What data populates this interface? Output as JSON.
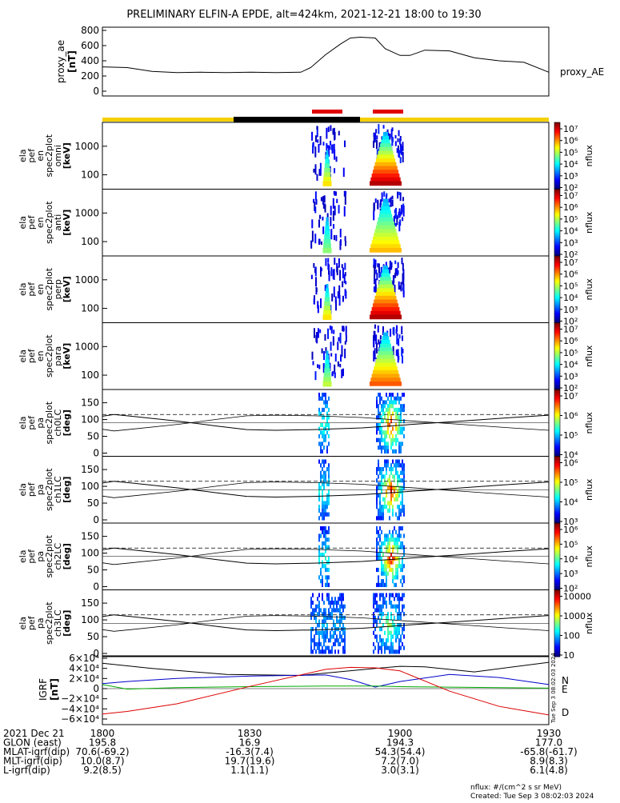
{
  "title": "PRELIMINARY ELFIN-A EPDE, alt=424km, 2021-12-21 18:00 to 19:30",
  "ae_panel": {
    "ylabel": "proxy_ae",
    "unit": "[nT]",
    "legend": "proxy_AE",
    "ticks": [
      "800",
      "600",
      "400",
      "200",
      "0"
    ]
  },
  "spec_panels": [
    {
      "l1": "ela",
      "l2": "pef",
      "l3": "en",
      "l4": "spec2plot",
      "l5": "omni",
      "unit": "[keV]",
      "ticks": [
        "1000",
        "100"
      ],
      "cb_label": "nflux"
    },
    {
      "l1": "ela",
      "l2": "pef",
      "l3": "en",
      "l4": "spec2plot",
      "l5": "anti",
      "unit": "[keV]",
      "ticks": [
        "1000",
        "100"
      ],
      "cb_label": "nflux"
    },
    {
      "l1": "ela",
      "l2": "pef",
      "l3": "en",
      "l4": "spec2plot",
      "l5": "perp",
      "unit": "[keV]",
      "ticks": [
        "1000",
        "100"
      ],
      "cb_label": "nflux"
    },
    {
      "l1": "ela",
      "l2": "pef",
      "l3": "en",
      "l4": "spec2plot",
      "l5": "para",
      "unit": "[keV]",
      "ticks": [
        "1000",
        "100"
      ],
      "cb_label": "nflux"
    }
  ],
  "pa_panels": [
    {
      "l1": "ela",
      "l2": "pef",
      "l3": "pa",
      "l4": "spec2plot",
      "l5": "ch0LC",
      "unit": "[deg]",
      "ticks": [
        "150",
        "100",
        "50",
        "0"
      ],
      "cb_label": "nflux"
    },
    {
      "l1": "ela",
      "l2": "pef",
      "l3": "pa",
      "l4": "spec2plot",
      "l5": "ch1LC",
      "unit": "[deg]",
      "ticks": [
        "150",
        "100",
        "50",
        "0"
      ],
      "cb_label": "nflux"
    },
    {
      "l1": "ela",
      "l2": "pef",
      "l3": "pa",
      "l4": "spec2plot",
      "l5": "ch2LC",
      "unit": "[deg]",
      "ticks": [
        "150",
        "100",
        "50",
        "0"
      ],
      "cb_label": "nflux"
    },
    {
      "l1": "ela",
      "l2": "pef",
      "l3": "pa",
      "l4": "spec2plot",
      "l5": "ch3LC",
      "unit": "[deg]",
      "ticks": [
        "150",
        "100",
        "50",
        "0"
      ],
      "cb_label": "nflux"
    }
  ],
  "colorbars": [
    {
      "labels": [
        "10⁷",
        "10⁶",
        "10⁵",
        "10⁴",
        "10³",
        "10²"
      ]
    },
    {
      "labels": [
        "10⁷",
        "10⁶",
        "10⁵",
        "10⁴",
        "10³",
        "10²"
      ]
    },
    {
      "labels": [
        "10⁷",
        "10⁶",
        "10⁵",
        "10⁴",
        "10³",
        "10²"
      ]
    },
    {
      "labels": [
        "10⁷",
        "10⁶",
        "10⁵",
        "10⁴",
        "10³",
        "10²"
      ]
    },
    {
      "labels": [
        "10⁷",
        "10⁶",
        "10⁵",
        "10⁴"
      ]
    },
    {
      "labels": [
        "10⁶",
        "10⁵",
        "10⁴",
        "10³"
      ]
    },
    {
      "labels": [
        "10⁶",
        "10⁵",
        "10⁴",
        "10³",
        "10²"
      ]
    },
    {
      "labels": [
        "10000",
        "1000",
        "100",
        "10"
      ]
    }
  ],
  "igrf_panel": {
    "ylabel": "IGRF",
    "unit": "[nT]",
    "ticks": [
      "6×10⁴",
      "4×10⁴",
      "2×10⁴",
      "0",
      "−2×10⁴",
      "−4×10⁴",
      "−6×10⁴"
    ],
    "legend": [
      "N",
      "E",
      "D"
    ],
    "side_note": "Tue Sep 3 08:02:03 2024"
  },
  "bottom_table": {
    "rows": [
      {
        "label": "2021 Dec 21",
        "values": [
          "1800",
          "1830",
          "1900",
          "1930"
        ]
      },
      {
        "label": "GLON (east)",
        "values": [
          "195.8",
          "16.9",
          "194.3",
          "177.0"
        ]
      },
      {
        "label": "MLAT-igrf(dip)",
        "values": [
          "70.6(-69.2)",
          "-16.3(7.4)",
          "54.3(54.4)",
          "-65.8(-61.7)"
        ]
      },
      {
        "label": "MLT-igrf(dip)",
        "values": [
          "10.0(8.7)",
          "19.7(19.6)",
          "7.2(7.0)",
          "8.9(8.3)"
        ]
      },
      {
        "label": "L-igrf(dip)",
        "values": [
          "9.2(8.5)",
          "1.1(1.1)",
          "3.0(3.1)",
          "6.1(4.8)"
        ]
      }
    ]
  },
  "footer": {
    "units": "nflux: #/(cm^2 s sr MeV)",
    "created": "Created: Tue Sep  3 08:02:03 2024"
  },
  "colors": {
    "day": "#f5d000",
    "night": "#000000",
    "science": "#e00000",
    "N": "#0000cc",
    "E": "#00aa00",
    "D": "#dd0000"
  },
  "chart_data": {
    "type": "heatmap",
    "title": "PRELIMINARY ELFIN-A EPDE, alt=424km, 2021-12-21 18:00 to 19:30",
    "x_range": [
      "18:00",
      "19:30"
    ],
    "x_ticks": [
      "1800",
      "1830",
      "1900",
      "1930"
    ],
    "proxy_ae": {
      "ylabel": "proxy_ae [nT]",
      "ylim": [
        0,
        800
      ],
      "x": [
        "18:00",
        "18:05",
        "18:10",
        "18:15",
        "18:20",
        "18:25",
        "18:30",
        "18:35",
        "18:40",
        "18:42",
        "18:45",
        "18:48",
        "18:50",
        "18:52",
        "18:55",
        "18:57",
        "19:00",
        "19:02",
        "19:05",
        "19:10",
        "19:15",
        "19:20",
        "19:25",
        "19:30"
      ],
      "y": [
        320,
        310,
        260,
        245,
        250,
        245,
        250,
        245,
        250,
        310,
        480,
        620,
        700,
        710,
        700,
        560,
        470,
        470,
        540,
        530,
        440,
        400,
        380,
        250
      ]
    },
    "energy_range_keV": [
      60,
      6000
    ],
    "energy_log_scale": true,
    "pitch_angle_range_deg": [
      0,
      180
    ],
    "science_zones": [
      [
        "18:47",
        "18:53"
      ],
      [
        "18:54",
        "19:00"
      ]
    ],
    "colorbar_scale": "log",
    "igrf": {
      "ylabel": "IGRF [nT]",
      "ylim": [
        -60000,
        60000
      ],
      "series": [
        {
          "name": "N",
          "x": [
            "18:00",
            "18:05",
            "18:15",
            "18:30",
            "18:45",
            "18:50",
            "18:55",
            "19:00",
            "19:10",
            "19:20",
            "19:30"
          ],
          "y": [
            10000,
            14000,
            20000,
            25000,
            27000,
            18000,
            3000,
            14000,
            28000,
            22000,
            8000
          ]
        },
        {
          "name": "E",
          "x": [
            "18:00",
            "18:05",
            "18:15",
            "18:30",
            "18:45",
            "18:50",
            "18:55",
            "19:00",
            "19:10",
            "19:20",
            "19:30"
          ],
          "y": [
            8000,
            -1000,
            2000,
            4000,
            5000,
            5000,
            5000,
            4000,
            3000,
            2000,
            1000
          ]
        },
        {
          "name": "D",
          "x": [
            "18:00",
            "18:05",
            "18:15",
            "18:30",
            "18:45",
            "18:50",
            "18:55",
            "19:00",
            "19:10",
            "19:20",
            "19:30"
          ],
          "y": [
            -50000,
            -45000,
            -30000,
            5000,
            38000,
            42000,
            41000,
            35000,
            -5000,
            -35000,
            -52000
          ]
        }
      ]
    }
  }
}
